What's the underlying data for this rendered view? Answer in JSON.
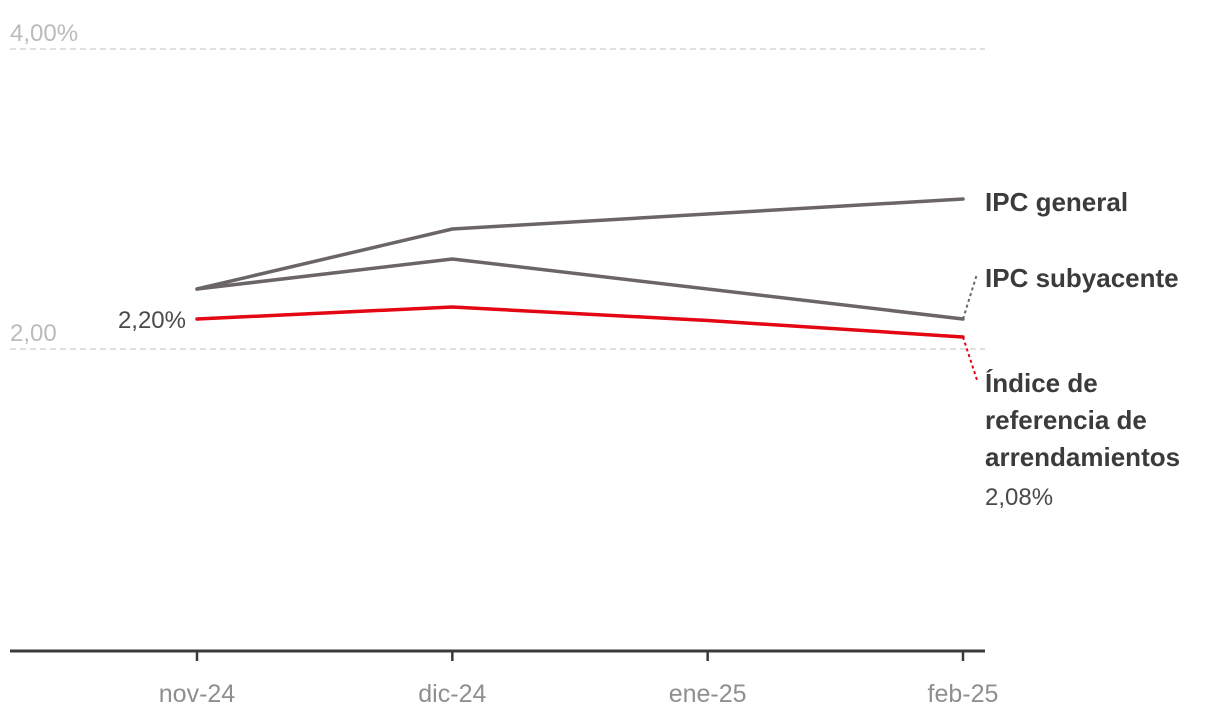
{
  "chart_data": {
    "type": "line",
    "categories": [
      "nov-24",
      "dic-24",
      "ene-25",
      "feb-25"
    ],
    "ylim": [
      0,
      4
    ],
    "yticks": [
      {
        "value": 4,
        "label": "4,00%"
      },
      {
        "value": 2,
        "label": "2,00"
      }
    ],
    "grid": true,
    "series": [
      {
        "name": "IPC general",
        "values": [
          2.4,
          2.8,
          null,
          3.0
        ],
        "color": "#6b6567"
      },
      {
        "name": "IPC subyacente",
        "values": [
          2.4,
          2.6,
          null,
          2.2
        ],
        "color": "#6b6567"
      },
      {
        "name_lines": [
          "Índice de",
          "referencia de",
          "arrendamientos"
        ],
        "values": [
          2.2,
          2.28,
          2.19,
          2.08
        ],
        "color": "#e30613",
        "start_label": "2,20%",
        "end_label": "2,08%"
      }
    ]
  }
}
